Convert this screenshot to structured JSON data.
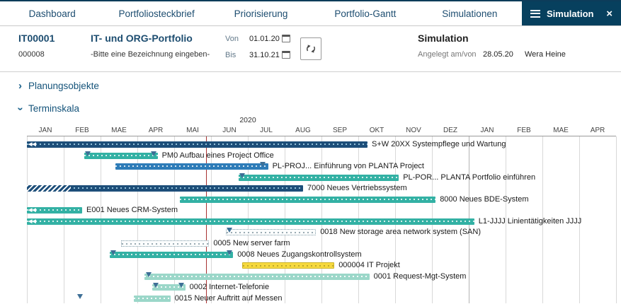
{
  "nav": {
    "tabs": [
      "Dashboard",
      "Portfoliosteckbrief",
      "Priorisierung",
      "Portfolio-Gantt",
      "Simulationen"
    ],
    "active_tab": "Simulation"
  },
  "icons": {
    "chevron": "›",
    "close": "×",
    "scroll_left": "◀◀"
  },
  "header": {
    "portfolio_id": "IT00001",
    "portfolio_code": "000008",
    "portfolio_title": "IT- und ORG-Portfolio",
    "portfolio_subtitle": "-Bitte eine Bezeichnung eingeben-",
    "von_label": "Von",
    "von_value": "01.01.20",
    "bis_label": "Bis",
    "bis_value": "31.10.21",
    "module_title": "Simulation",
    "created_label": "Angelegt am/von",
    "created_date": "28.05.20",
    "created_by": "Wera Heine"
  },
  "sections": {
    "planungsobjekte": {
      "label": "Planungsobjekte",
      "collapsed": true
    },
    "terminskala": {
      "label": "Terminskala",
      "collapsed": false
    }
  },
  "chart_data": {
    "type": "gantt",
    "year_label": "2020",
    "months": [
      "JAN",
      "FEB",
      "MAE",
      "APR",
      "MAI",
      "JUN",
      "JUL",
      "AUG",
      "SEP",
      "OKT",
      "NOV",
      "DEZ",
      "JAN",
      "FEB",
      "MAE",
      "APR"
    ],
    "month_span": 16,
    "today_month": 4.87,
    "colors": {
      "navy": "#1d4e79",
      "teal": "#33b1a4",
      "blue": "#2e7cb8",
      "yellow": "#f6d93f",
      "mint": "#9bd7c9",
      "planned_border": "#7f9aa6",
      "today_line": "#a93232",
      "accent_nav": "#07405e"
    },
    "bars": [
      {
        "id": "SW20XX",
        "label": "S+W 20XX Systempflege und Wartung",
        "start": 0,
        "end": 9.25,
        "style": "navy",
        "chevrons": true
      },
      {
        "id": "PM0",
        "label": "PM0  Aufbau eines Project Office",
        "start": 1.55,
        "end": 3.55,
        "style": "teal",
        "markers": [
          1.65,
          3.45
        ]
      },
      {
        "id": "PL-PROJ",
        "label": "PL-PROJ...  Einführung von PLANTA Project",
        "start": 2.4,
        "end": 6.55,
        "style": "blue",
        "markers": [
          6.4
        ]
      },
      {
        "id": "PL-POR",
        "label": "PL-POR...  PLANTA Portfolio einführen",
        "start": 5.75,
        "end": 10.1,
        "style": "teal",
        "markers": [
          5.85
        ]
      },
      {
        "id": "7000",
        "label": "7000 Neues Vertriebssystem",
        "start": 0,
        "end": 7.5,
        "style": "navy",
        "done_until": 1.2
      },
      {
        "id": "8000",
        "label": "8000 Neues BDE-System",
        "start": 4.15,
        "end": 11.1,
        "style": "teal"
      },
      {
        "id": "E001",
        "label": "E001 Neues CRM-System",
        "start": 0,
        "end": 1.5,
        "style": "teal",
        "chevrons": true
      },
      {
        "id": "L1-JJJJ",
        "label": "L1-JJJJ Linientätigkeiten JJJJ",
        "start": 0,
        "end": 12.15,
        "style": "teal",
        "chevrons": true
      },
      {
        "id": "0018",
        "label": "0018 New storage area network system (SAN)",
        "start": 5.4,
        "end": 7.85,
        "style": "planned",
        "markers": [
          5.5
        ]
      },
      {
        "id": "0005",
        "label": "0005 New server farm",
        "start": 2.55,
        "end": 4.95,
        "style": "planned"
      },
      {
        "id": "0008",
        "label": "0008 Neues Zugangskontrollsystem",
        "start": 2.25,
        "end": 5.6,
        "style": "teal",
        "markers": [
          2.35,
          5.5
        ]
      },
      {
        "id": "000004",
        "label": "000004 IT Projekt",
        "start": 5.85,
        "end": 8.35,
        "style": "yellow"
      },
      {
        "id": "0001",
        "label": "0001 Request-Mgt-System",
        "start": 3.2,
        "end": 9.3,
        "style": "mint",
        "markers": [
          3.3
        ]
      },
      {
        "id": "0002",
        "label": "0002 Internet-Telefonie",
        "start": 3.4,
        "end": 4.3,
        "style": "mint",
        "markers": [
          3.5,
          4.2
        ]
      },
      {
        "id": "0015",
        "label": "0015 Neuer Auftritt auf Messen",
        "start": 2.9,
        "end": 3.9,
        "style": "mint",
        "markers": [
          1.45
        ]
      }
    ]
  }
}
